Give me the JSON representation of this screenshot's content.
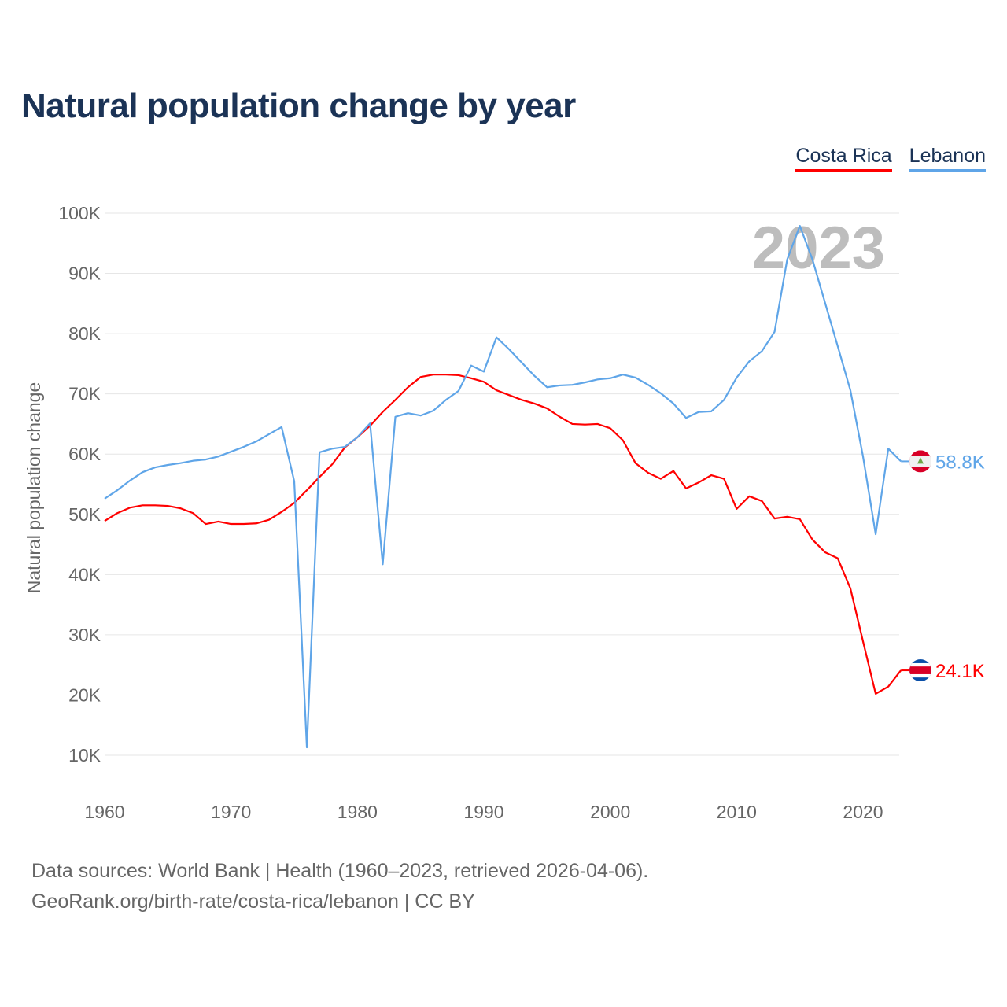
{
  "chart_data": {
    "type": "line",
    "title": "Natural population change by year",
    "xlabel": "",
    "ylabel": "Natural population change",
    "ylim": [
      10000,
      100000
    ],
    "xlim": [
      1960,
      2023
    ],
    "grid": true,
    "legend_position": "top-right",
    "year_watermark": "2023",
    "x_ticks": [
      "1960",
      "1970",
      "1980",
      "1990",
      "2000",
      "2010",
      "2020"
    ],
    "y_ticks": [
      "10K",
      "20K",
      "30K",
      "40K",
      "50K",
      "60K",
      "70K",
      "80K",
      "90K",
      "100K"
    ],
    "series": [
      {
        "name": "Costa Rica",
        "color": "#ff0000",
        "end_label": "24.1K",
        "values": [
          48900,
          50200,
          51100,
          51500,
          51500,
          51400,
          51000,
          50200,
          48400,
          48800,
          48400,
          48400,
          48500,
          49100,
          50400,
          51900,
          54000,
          56200,
          58300,
          61100,
          62800,
          64700,
          67000,
          69000,
          71100,
          72800,
          73200,
          73200,
          73100,
          72600,
          72000,
          70600,
          69800,
          69000,
          68400,
          67600,
          66200,
          65000,
          64900,
          65000,
          64300,
          62300,
          58500,
          56900,
          55900,
          57200,
          54300,
          55300,
          56500,
          55900,
          50900,
          53000,
          52200,
          49300,
          49600,
          49200,
          45800,
          43700,
          42700,
          37700,
          28900,
          20200,
          21400,
          24100
        ]
      },
      {
        "name": "Lebanon",
        "color": "#5fa5e8",
        "end_label": "58.8K",
        "values": [
          52600,
          54000,
          55600,
          57000,
          57800,
          58200,
          58500,
          58900,
          59100,
          59600,
          60400,
          61200,
          62100,
          63300,
          64500,
          55500,
          11300,
          60300,
          60900,
          61200,
          62800,
          65100,
          41700,
          66200,
          66800,
          66400,
          67200,
          69000,
          70500,
          74700,
          73700,
          79400,
          77400,
          75200,
          73000,
          71100,
          71400,
          71500,
          71900,
          72400,
          72600,
          73200,
          72700,
          71500,
          70100,
          68400,
          66000,
          67000,
          67100,
          69000,
          72700,
          75400,
          77100,
          80300,
          92300,
          97900,
          92300,
          85100,
          77900,
          70600,
          59600,
          46700,
          60900,
          58800
        ]
      }
    ]
  },
  "footer": {
    "source_line": "Data sources: World Bank | Health (1960–2023, retrieved 2026-04-06).",
    "url_line": "GeoRank.org/birth-rate/costa-rica/lebanon | CC BY"
  }
}
